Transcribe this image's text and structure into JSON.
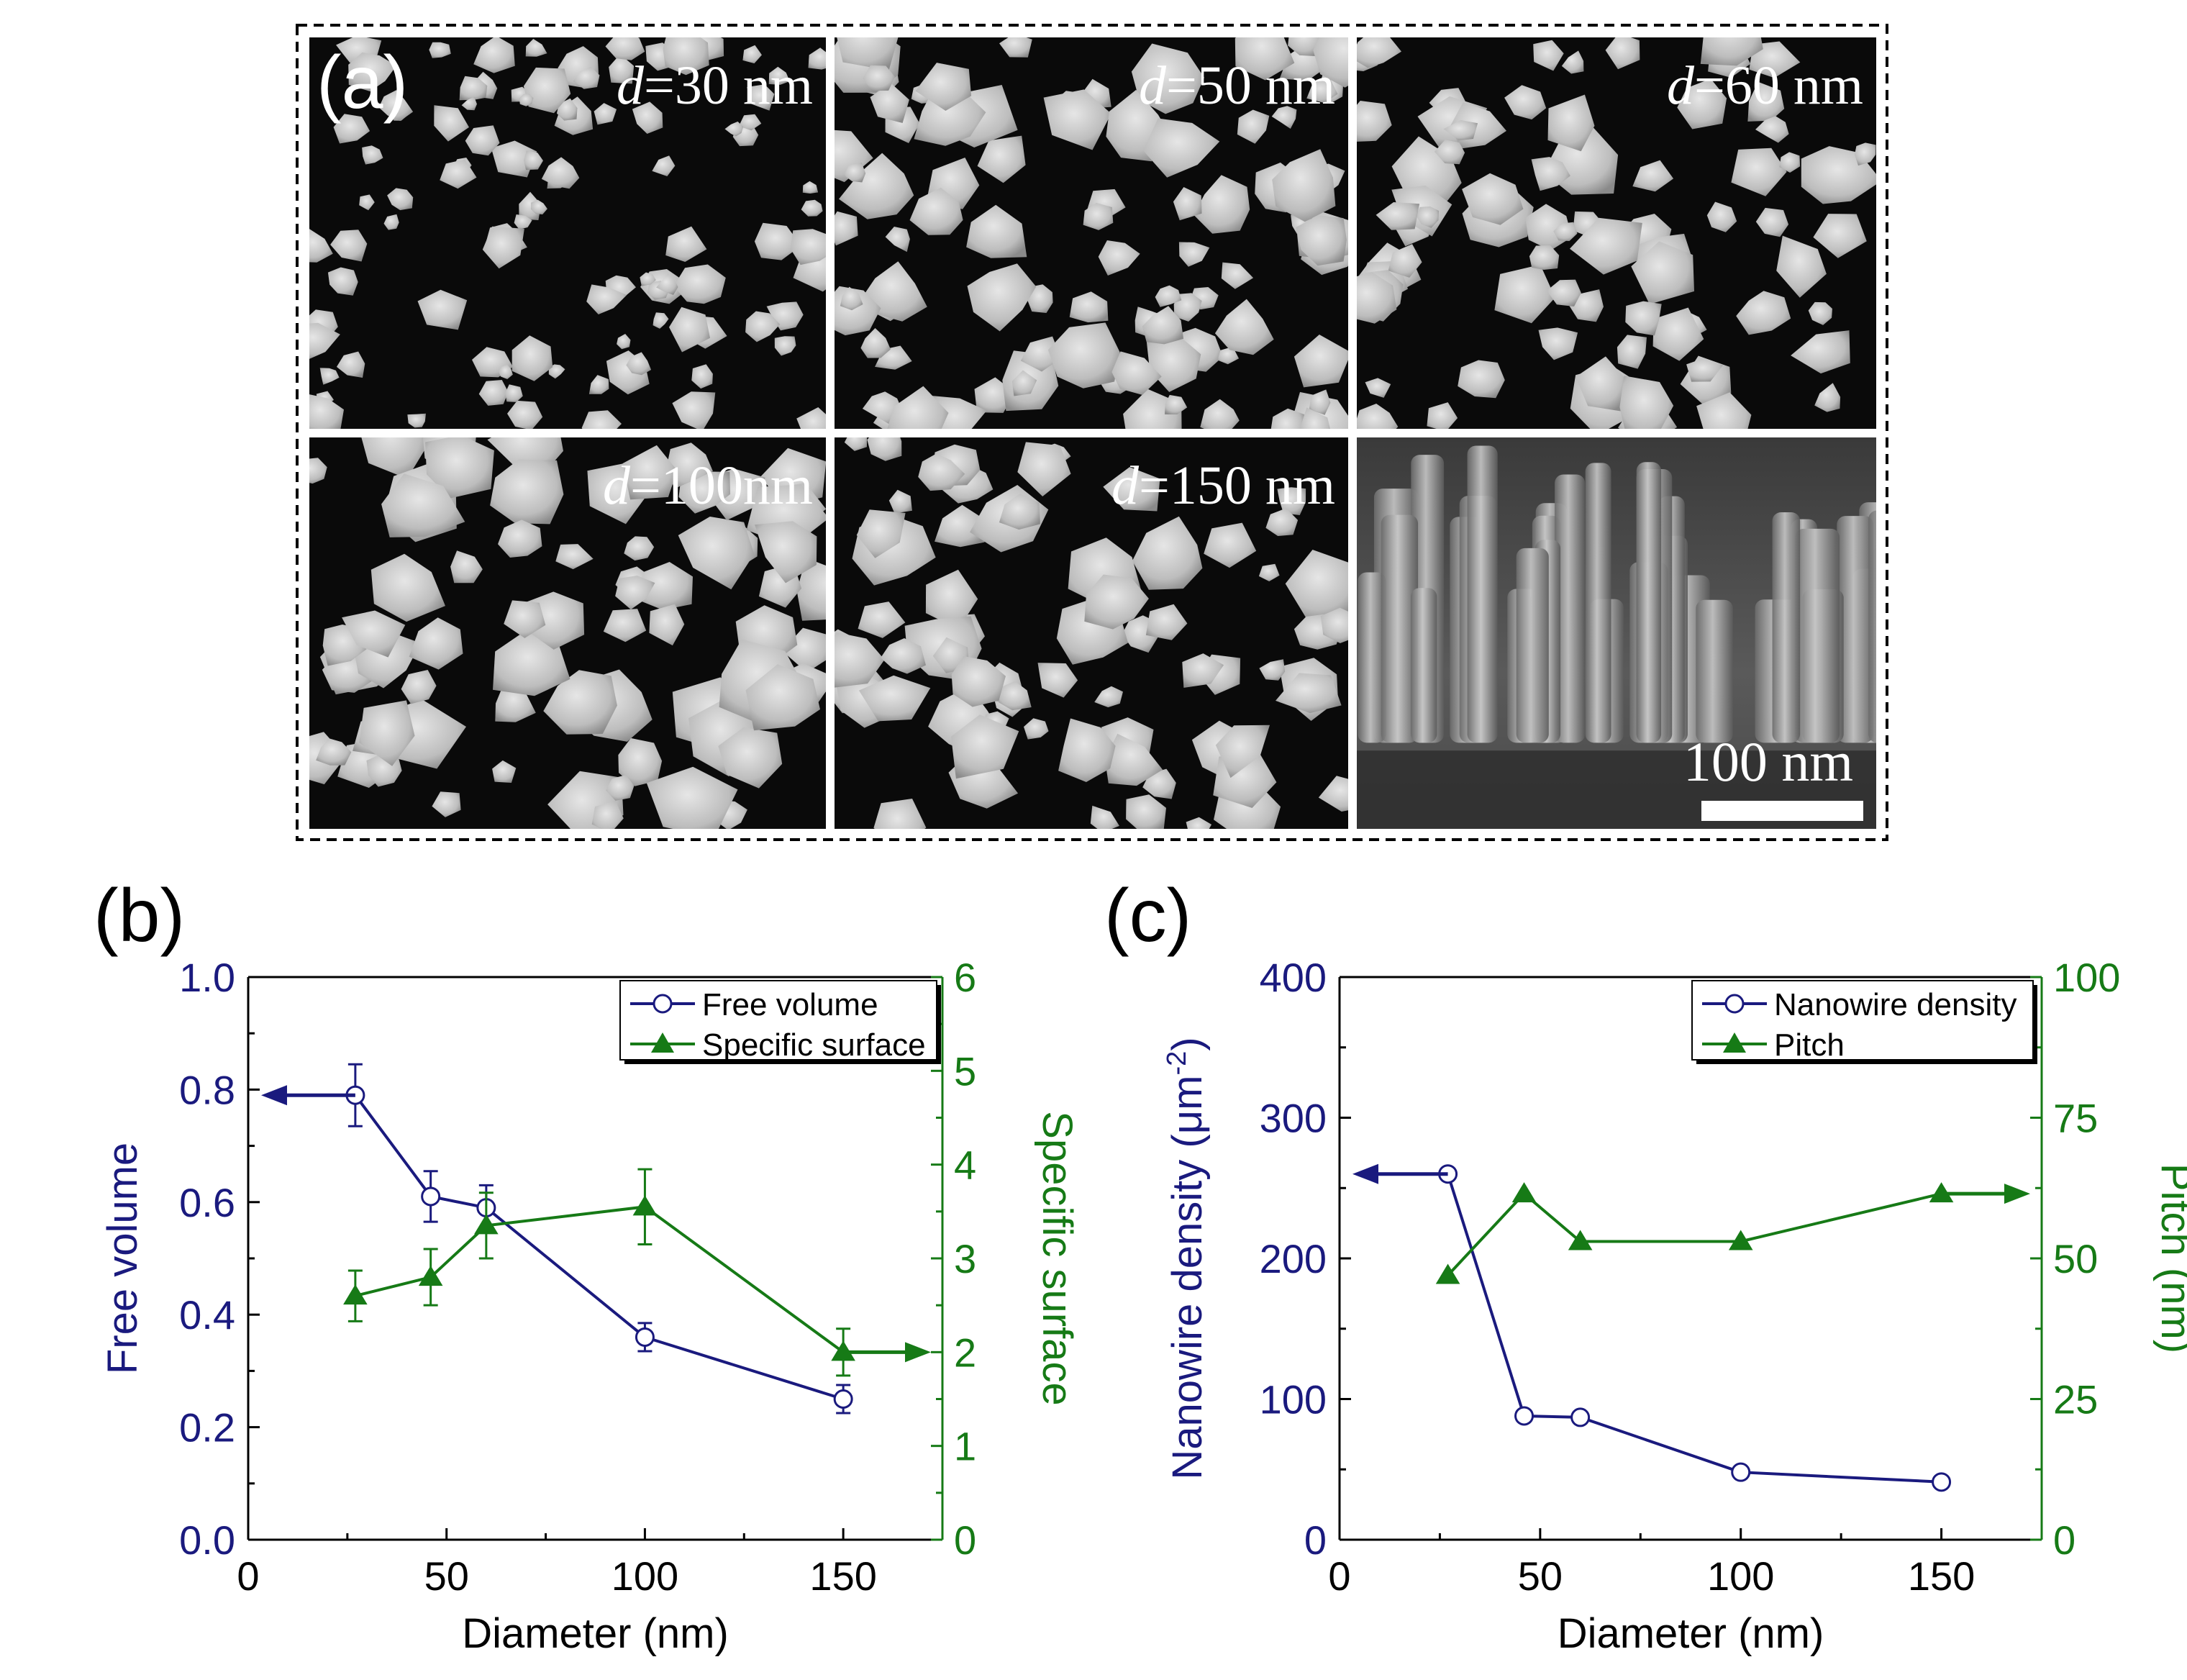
{
  "panel_a": {
    "label": "(a)",
    "scale_bar_label": "100 nm",
    "images": [
      {
        "prefix": "d",
        "label": "=30 nm"
      },
      {
        "prefix": "d",
        "label": "=50 nm"
      },
      {
        "prefix": "d",
        "label": "=60 nm"
      },
      {
        "prefix": "d",
        "label": "=100nm"
      },
      {
        "prefix": "d",
        "label": "=150 nm"
      },
      {
        "prefix": "",
        "label": ""
      }
    ]
  },
  "colors": {
    "left": "#1a1a7e",
    "right": "#167a16",
    "axis": "#000000"
  },
  "chart_data": [
    {
      "panel": "(b)",
      "type": "line",
      "xlabel": "Diameter (nm)",
      "xlim": [
        0,
        175
      ],
      "xticks": [
        0,
        50,
        100,
        150
      ],
      "y_left": {
        "label": "Free volume",
        "lim": [
          0,
          1.0
        ],
        "ticks": [
          "0.0",
          "0.2",
          "0.4",
          "0.6",
          "0.8",
          "1.0"
        ],
        "tick_values": [
          0,
          0.2,
          0.4,
          0.6,
          0.8,
          1.0
        ]
      },
      "y_right": {
        "label": "Specific surface",
        "lim": [
          0,
          6
        ],
        "ticks": [
          "0",
          "1",
          "2",
          "3",
          "4",
          "5",
          "6"
        ],
        "tick_values": [
          0,
          1,
          2,
          3,
          4,
          5,
          6
        ]
      },
      "series": [
        {
          "name": "Free volume",
          "axis": "left",
          "marker": "open-circle",
          "x": [
            27,
            46,
            60,
            100,
            150
          ],
          "y": [
            0.79,
            0.61,
            0.59,
            0.36,
            0.25
          ],
          "err": [
            0.055,
            0.045,
            0.04,
            0.025,
            0.025
          ]
        },
        {
          "name": "Specific surface",
          "axis": "right",
          "marker": "filled-triangle",
          "x": [
            27,
            46,
            60,
            100,
            150
          ],
          "y": [
            2.6,
            2.8,
            3.35,
            3.55,
            2.0
          ],
          "err": [
            0.27,
            0.3,
            0.35,
            0.4,
            0.25
          ]
        }
      ],
      "arrows": [
        {
          "series": "Free volume",
          "direction": "left",
          "y": 0.79,
          "x_from": 27
        },
        {
          "series": "Specific surface",
          "direction": "right",
          "y": 2.0,
          "x_from": 150
        }
      ],
      "legend_position": "top-right"
    },
    {
      "panel": "(c)",
      "type": "line",
      "xlabel": "Diameter (nm)",
      "xlim": [
        0,
        175
      ],
      "xticks": [
        0,
        50,
        100,
        150
      ],
      "y_left": {
        "label": "Nanowire density (μm",
        "label_sup": "-2",
        "label_end": ")",
        "lim": [
          0,
          400
        ],
        "ticks": [
          "0",
          "100",
          "200",
          "300",
          "400"
        ],
        "tick_values": [
          0,
          100,
          200,
          300,
          400
        ]
      },
      "y_right": {
        "label": "Pitch (nm)",
        "lim": [
          0,
          100
        ],
        "ticks": [
          "0",
          "25",
          "50",
          "75",
          "100"
        ],
        "tick_values": [
          0,
          25,
          50,
          75,
          100
        ]
      },
      "series": [
        {
          "name": "Nanowire density",
          "axis": "left",
          "marker": "open-circle",
          "x": [
            27,
            46,
            60,
            100,
            150
          ],
          "y": [
            260,
            88,
            87,
            48,
            41
          ]
        },
        {
          "name": "Pitch",
          "axis": "right",
          "marker": "filled-triangle",
          "x": [
            27,
            46,
            60,
            100,
            150
          ],
          "y": [
            47,
            61.5,
            53,
            53,
            61.5
          ]
        }
      ],
      "arrows": [
        {
          "series": "Nanowire density",
          "direction": "left",
          "y": 260,
          "x_from": 27
        },
        {
          "series": "Pitch",
          "direction": "right",
          "y": 61.5,
          "x_from": 150
        }
      ],
      "legend_position": "top-right"
    }
  ]
}
